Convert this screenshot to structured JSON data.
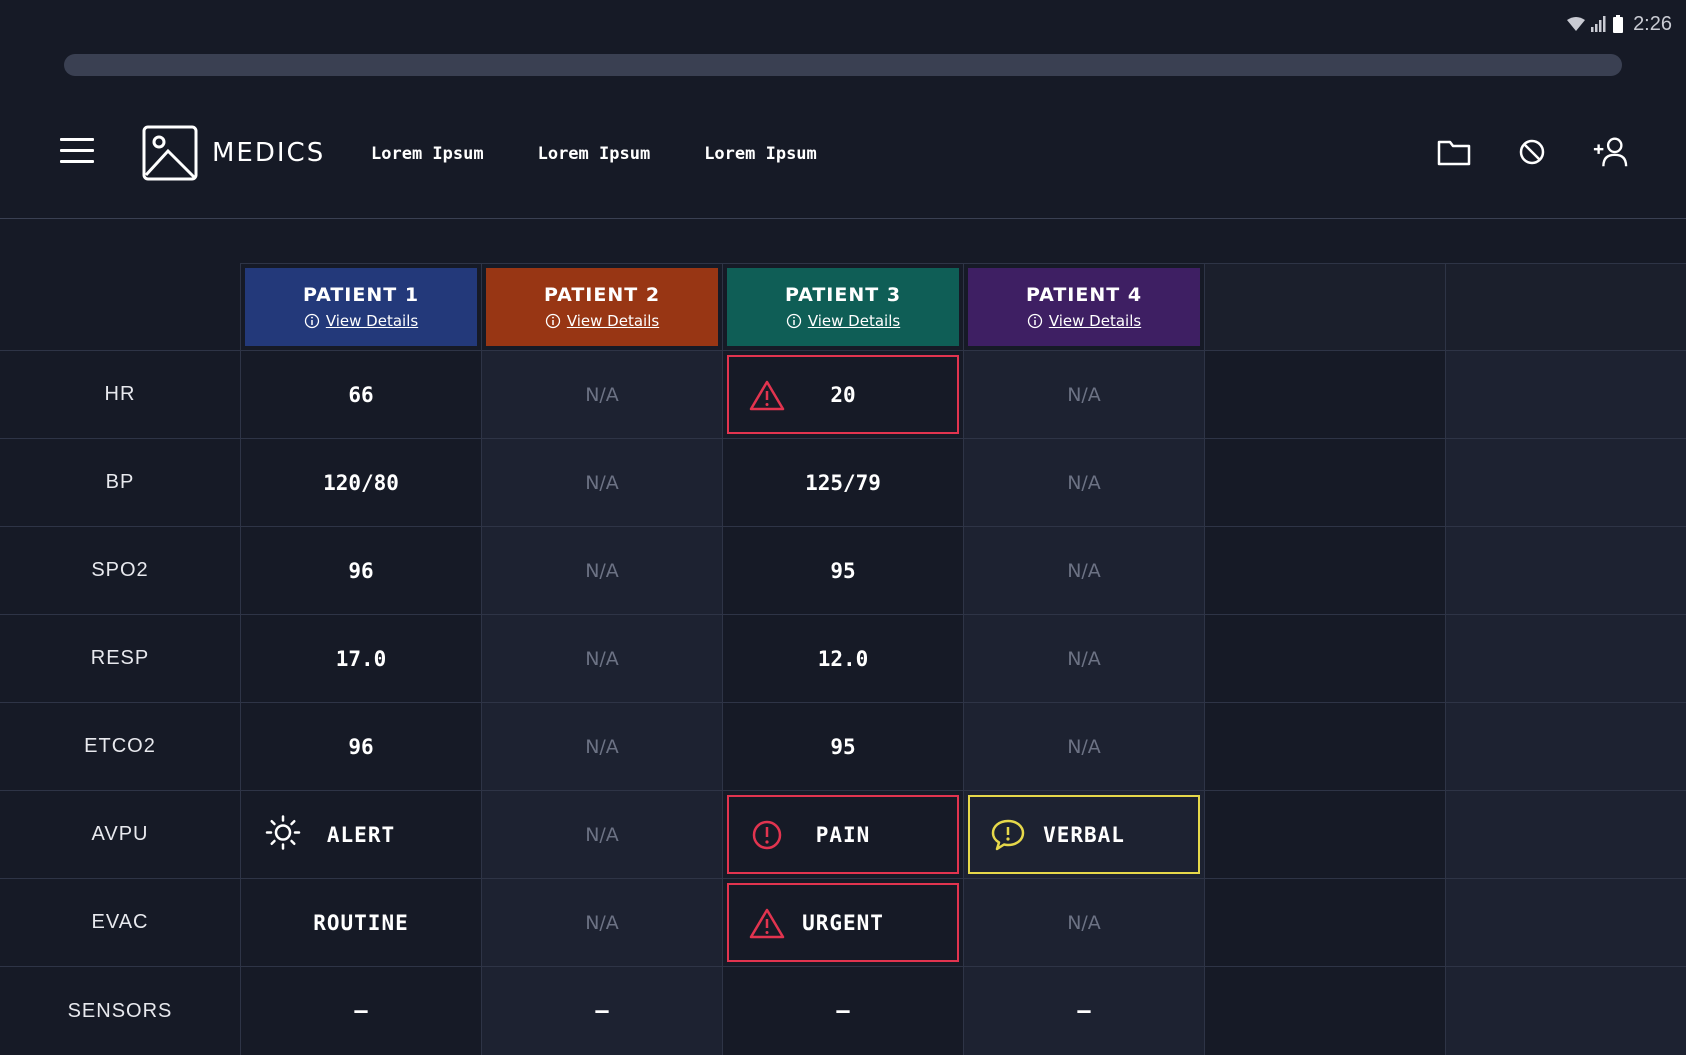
{
  "status_bar": {
    "time": "2:26",
    "wifi_icon": "wifi-icon",
    "signal_icon": "signal-icon",
    "battery_icon": "battery-icon"
  },
  "progress": {
    "value_percent": 0
  },
  "header": {
    "brand": "MEDICS",
    "nav": [
      "Lorem Ipsum",
      "Lorem Ipsum",
      "Lorem Ipsum"
    ],
    "actions": [
      "folder-icon",
      "block-icon",
      "add-user-icon"
    ]
  },
  "patients": [
    {
      "name": "PATIENT 1",
      "link": "View Details",
      "color": "#23397a"
    },
    {
      "name": "PATIENT 2",
      "link": "View Details",
      "color": "#983614"
    },
    {
      "name": "PATIENT 3",
      "link": "View Details",
      "color": "#0f5e56"
    },
    {
      "name": "PATIENT 4",
      "link": "View Details",
      "color": "#3e1f63"
    }
  ],
  "rows": [
    {
      "label": "HR",
      "values": [
        "66",
        "N/A",
        "20",
        "N/A"
      ]
    },
    {
      "label": "BP",
      "values": [
        "120/80",
        "N/A",
        "125/79",
        "N/A"
      ]
    },
    {
      "label": "SPO2",
      "values": [
        "96",
        "N/A",
        "95",
        "N/A"
      ]
    },
    {
      "label": "RESP",
      "values": [
        "17.0",
        "N/A",
        "12.0",
        "N/A"
      ]
    },
    {
      "label": "ETCO2",
      "values": [
        "96",
        "N/A",
        "95",
        "N/A"
      ]
    },
    {
      "label": "AVPU",
      "values": [
        "ALERT",
        "N/A",
        "PAIN",
        "VERBAL"
      ]
    },
    {
      "label": "EVAC",
      "values": [
        "ROUTINE",
        "N/A",
        "URGENT",
        "N/A"
      ]
    },
    {
      "label": "SENSORS",
      "values": [
        "–",
        "–",
        "–",
        "–"
      ]
    }
  ],
  "colors": {
    "alert_red": "#e2344f",
    "warning_yellow": "#e6d84a",
    "background": "#161a26"
  }
}
